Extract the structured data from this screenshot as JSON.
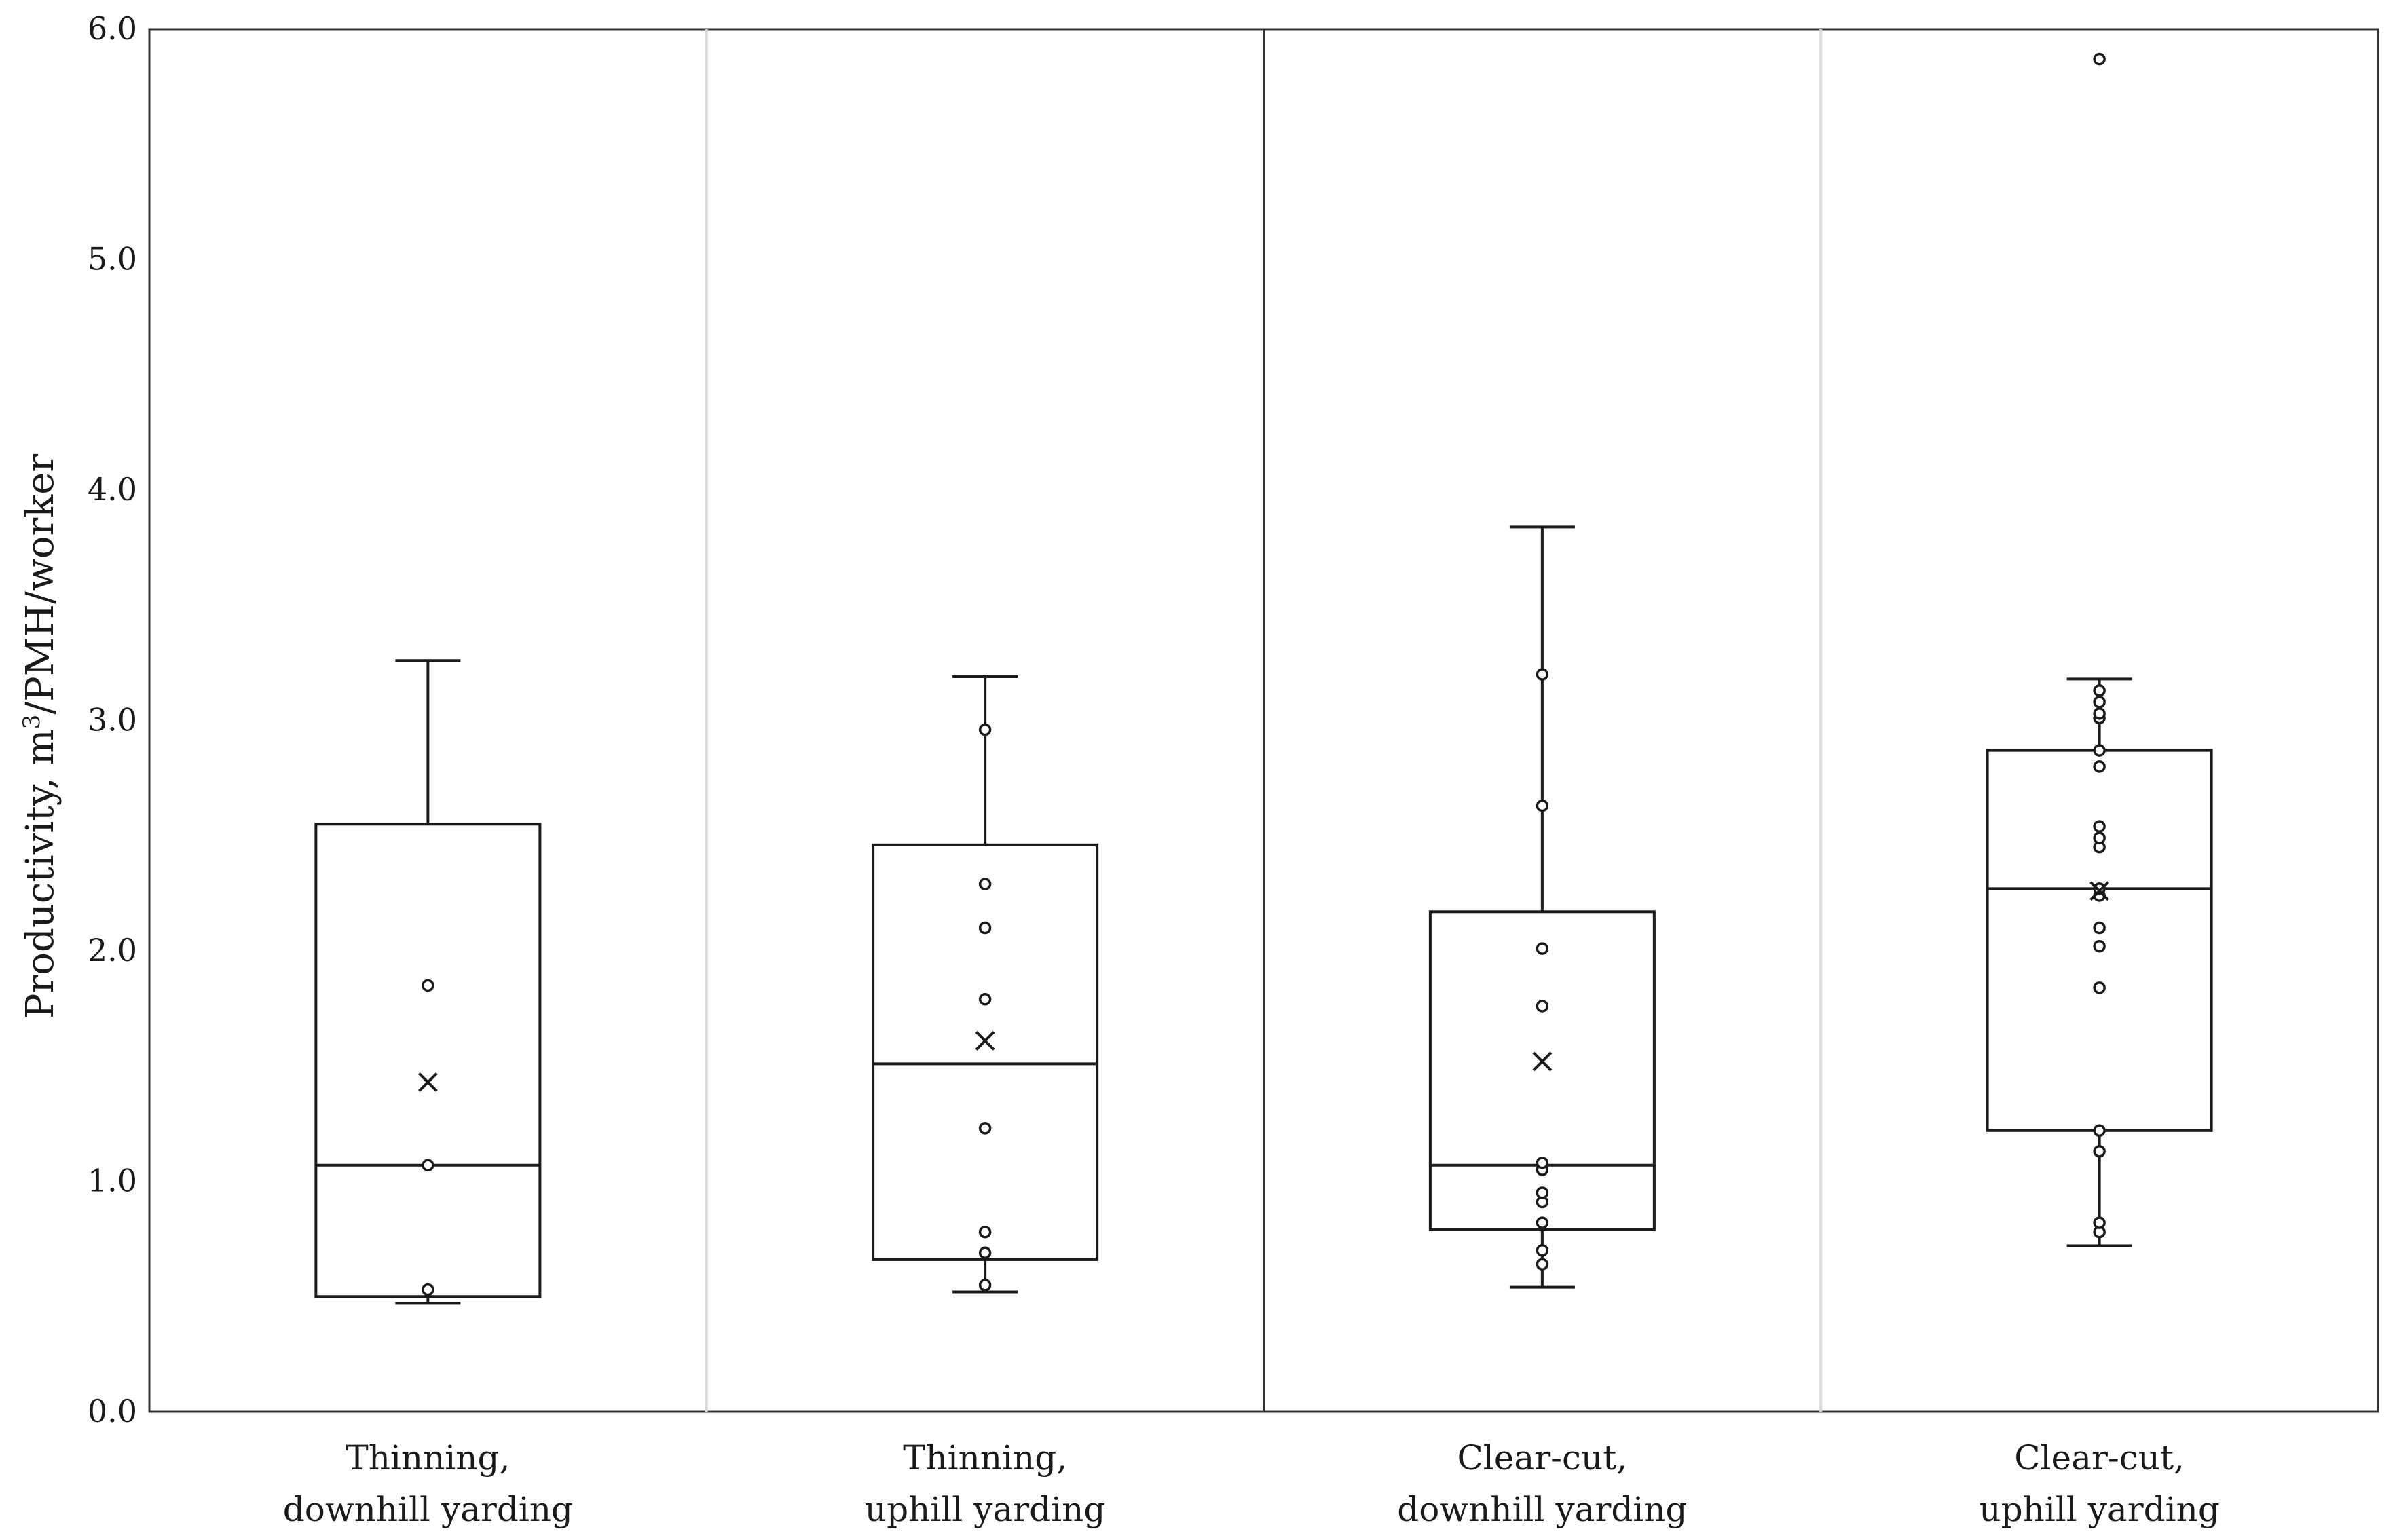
{
  "chart_data": {
    "type": "box",
    "title": "",
    "xlabel": "",
    "ylabel": "Productivity, m³/PMH/worker",
    "ylim": [
      0,
      6
    ],
    "yticks": [
      "0.0",
      "1.0",
      "2.0",
      "3.0",
      "4.0",
      "5.0",
      "6.0"
    ],
    "categories": [
      [
        "Thinning,",
        "downhill yarding"
      ],
      [
        "Thinning,",
        "uphill yarding"
      ],
      [
        "Clear-cut,",
        "downhill yarding"
      ],
      [
        "Clear-cut,",
        "uphill yarding"
      ]
    ],
    "series": [
      {
        "name": "Thinning, downhill yarding",
        "min": 0.47,
        "q1": 0.5,
        "median": 1.07,
        "q3": 2.55,
        "max": 3.26,
        "mean": 1.43,
        "points": [
          0.53,
          1.07,
          1.85
        ]
      },
      {
        "name": "Thinning, uphill yarding",
        "min": 0.52,
        "q1": 0.66,
        "median": 1.51,
        "q3": 2.46,
        "max": 3.19,
        "mean": 1.61,
        "points": [
          0.55,
          0.69,
          0.78,
          1.23,
          1.79,
          2.1,
          2.29,
          2.96
        ]
      },
      {
        "name": "Clear-cut, downhill yarding",
        "min": 0.54,
        "q1": 0.79,
        "median": 1.07,
        "q3": 2.17,
        "max": 3.84,
        "mean": 1.52,
        "points": [
          0.64,
          0.7,
          0.82,
          0.91,
          0.95,
          1.05,
          1.08,
          1.76,
          2.01,
          2.63,
          3.2
        ]
      },
      {
        "name": "Clear-cut, uphill yarding",
        "min": 0.72,
        "q1": 1.22,
        "median": 2.27,
        "q3": 2.87,
        "max": 3.18,
        "mean": 2.26,
        "points": [
          0.78,
          0.82,
          1.13,
          1.22,
          1.84,
          2.02,
          2.1,
          2.24,
          2.27,
          2.45,
          2.49,
          2.54,
          2.8,
          2.87,
          3.01,
          3.03,
          3.08,
          3.13,
          5.87
        ]
      }
    ]
  }
}
